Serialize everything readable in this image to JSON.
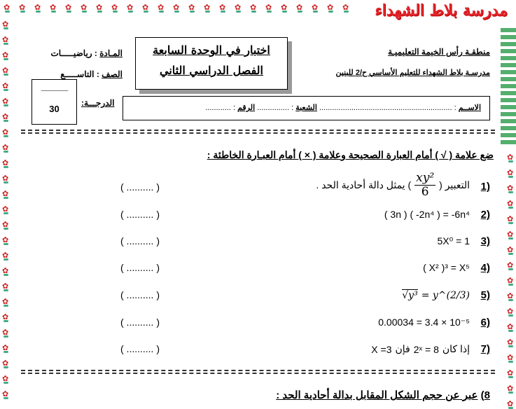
{
  "banner": {
    "school_logo_text": "مدرسة بلاط الشهداء"
  },
  "header": {
    "zone": "منطقـة رأس الخيمة التعليميـة",
    "school": "مدرسـة بلاط الشهداء للتعليم الأساسي ح/2 للبنين",
    "subject_label": "المـادة",
    "subject_value": "رياضيـــــات",
    "grade_label": "الصف",
    "grade_value": "التاســـــع",
    "title_line1": "اختبار في الوحدة السابعة",
    "title_line2": "الفصل الدراسي الثاني",
    "score_label": "الدرجـــة:",
    "score_blank": "______",
    "score_total": "30",
    "name_label": "الاســم",
    "name_blank": "..............................................................",
    "section_label": "الشعبة",
    "section_blank": "...............",
    "number_label": "الرقم",
    "number_blank": "............"
  },
  "instruction": "ضع علامة ( √ ) أمام العبارة الصحيحة وعلامة ( × ) أمام العبـارة الخاطئة :",
  "answer_blank": "( .......... )",
  "questions": [
    {
      "num": "1)",
      "pre": "التعبير (",
      "frac_num": "xy²",
      "frac_den": "6",
      "post": ") يمثل دالة أحادية الحد ."
    },
    {
      "num": "2)",
      "expr": "( 3n ) ( -2n⁴ ) = -6n⁴"
    },
    {
      "num": "3)",
      "expr": "5X⁰ = 1"
    },
    {
      "num": "4)",
      "expr": "( X² )³ = X⁵"
    },
    {
      "num": "5)",
      "expr_left": "√y³",
      "expr_right": "= y^(2/3)"
    },
    {
      "num": "6)",
      "expr": "0.00034 = 3.4 × 10⁻⁵"
    },
    {
      "num": "7)",
      "p1": "X =3",
      "p2": "فإن",
      "p3": "2ˣ = 8",
      "p4": "إذا كان"
    }
  ],
  "question8": {
    "num": "8)",
    "text": "عبر عن حجم الشكل المقابل بدالة أحادية الحد :"
  }
}
